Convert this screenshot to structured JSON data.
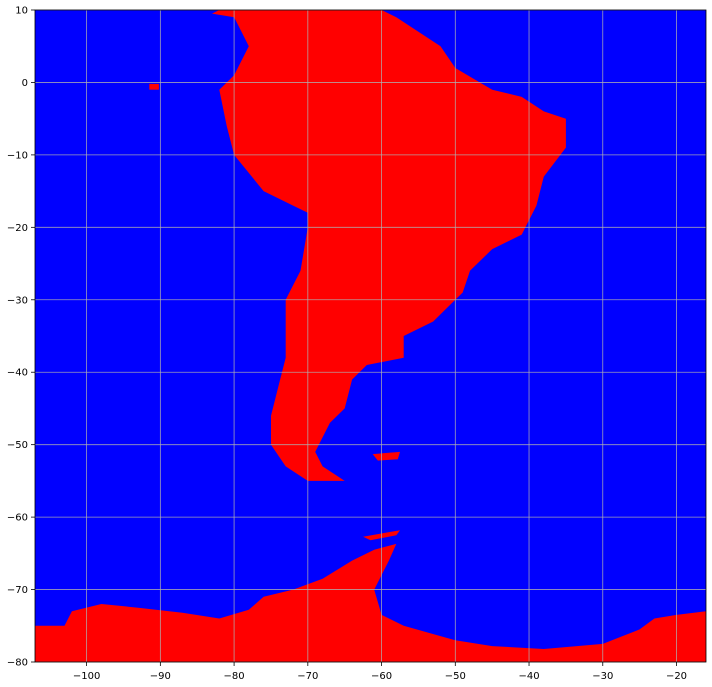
{
  "chart_data": {
    "type": "heatmap",
    "title": "",
    "xlabel": "",
    "ylabel": "",
    "xlim": [
      -107,
      -16
    ],
    "ylim": [
      -80,
      10
    ],
    "grid": true,
    "x_ticks": [
      -100,
      -90,
      -80,
      -70,
      -60,
      -50,
      -40,
      -30,
      -20
    ],
    "y_ticks": [
      10,
      0,
      -10,
      -20,
      -30,
      -40,
      -50,
      -60,
      -70,
      -80
    ],
    "x_tick_labels": [
      "−100",
      "−90",
      "−80",
      "−70",
      "−60",
      "−50",
      "−40",
      "−30",
      "−20"
    ],
    "y_tick_labels": [
      "10",
      "0",
      "−10",
      "−20",
      "−30",
      "−40",
      "−50",
      "−60",
      "−70",
      "−80"
    ],
    "classes": [
      {
        "value": 0,
        "meaning": "ocean",
        "color": "#0000ff"
      },
      {
        "value": 1,
        "meaning": "land",
        "color": "#ff0000"
      }
    ],
    "land_outlines_lonlat": {
      "south_america": [
        [
          -82,
          10
        ],
        [
          -60,
          10
        ],
        [
          -58,
          9
        ],
        [
          -55,
          7
        ],
        [
          -52,
          5
        ],
        [
          -50,
          2
        ],
        [
          -45,
          -1
        ],
        [
          -41,
          -2
        ],
        [
          -38,
          -4
        ],
        [
          -35,
          -5
        ],
        [
          -35,
          -9
        ],
        [
          -38,
          -13
        ],
        [
          -39,
          -17
        ],
        [
          -41,
          -21
        ],
        [
          -45,
          -23
        ],
        [
          -48,
          -26
        ],
        [
          -49,
          -29
        ],
        [
          -51,
          -31
        ],
        [
          -53,
          -33
        ],
        [
          -57,
          -35
        ],
        [
          -57,
          -38
        ],
        [
          -62,
          -39
        ],
        [
          -64,
          -41
        ],
        [
          -65,
          -45
        ],
        [
          -67,
          -47
        ],
        [
          -69,
          -51
        ],
        [
          -68,
          -53
        ],
        [
          -65,
          -55
        ],
        [
          -70,
          -55
        ],
        [
          -73,
          -53
        ],
        [
          -75,
          -50
        ],
        [
          -75,
          -46
        ],
        [
          -74,
          -42
        ],
        [
          -73,
          -38
        ],
        [
          -73,
          -30
        ],
        [
          -71,
          -26
        ],
        [
          -70,
          -20
        ],
        [
          -70,
          -18
        ],
        [
          -72,
          -17
        ],
        [
          -76,
          -15
        ],
        [
          -80,
          -10
        ],
        [
          -81,
          -6
        ],
        [
          -82,
          -1
        ],
        [
          -80,
          1
        ],
        [
          -78,
          5
        ],
        [
          -79,
          7
        ],
        [
          -80,
          9
        ],
        [
          -83,
          9.5
        ]
      ],
      "galapagos": [
        [
          -91.5,
          -0.2
        ],
        [
          -90.2,
          -0.2
        ],
        [
          -90.2,
          -1.0
        ],
        [
          -91.5,
          -1.0
        ]
      ],
      "falklands": [
        [
          -61.2,
          -51.3
        ],
        [
          -57.5,
          -51.0
        ],
        [
          -57.8,
          -52.0
        ],
        [
          -60.5,
          -52.2
        ]
      ],
      "south_shetlands": [
        [
          -62.5,
          -62.7
        ],
        [
          -57.5,
          -61.8
        ],
        [
          -58.0,
          -62.5
        ],
        [
          -61.5,
          -63.2
        ]
      ],
      "antarctica": [
        [
          -107,
          -75
        ],
        [
          -103,
          -75
        ],
        [
          -102,
          -73
        ],
        [
          -98,
          -72
        ],
        [
          -93,
          -72.5
        ],
        [
          -87,
          -73.2
        ],
        [
          -82,
          -74
        ],
        [
          -78,
          -72.8
        ],
        [
          -76,
          -71
        ],
        [
          -72,
          -70
        ],
        [
          -68,
          -68.5
        ],
        [
          -64,
          -66
        ],
        [
          -61,
          -64.5
        ],
        [
          -58,
          -63.7
        ],
        [
          -59,
          -66
        ],
        [
          -61,
          -70
        ],
        [
          -60,
          -73.5
        ],
        [
          -57,
          -75
        ],
        [
          -50,
          -77
        ],
        [
          -45,
          -77.8
        ],
        [
          -38,
          -78.2
        ],
        [
          -30,
          -77.5
        ],
        [
          -25,
          -75.5
        ],
        [
          -23,
          -74
        ],
        [
          -20,
          -73.5
        ],
        [
          -16,
          -73
        ],
        [
          -16,
          -80
        ],
        [
          -107,
          -80
        ]
      ]
    }
  }
}
